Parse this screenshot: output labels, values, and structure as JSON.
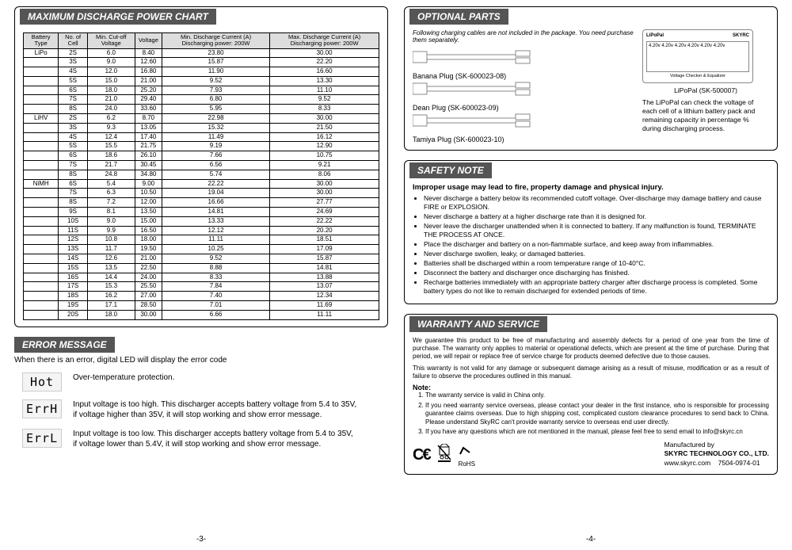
{
  "left": {
    "dischargeHeader": "MAXIMUM DISCHARGE POWER CHART",
    "tableHeaders": [
      "Battery Type",
      "No. of Cell",
      "Min. Cut-off Voltage",
      "Voltage",
      "Min. Discharge Current (A) Discharging power: 200W",
      "Max. Discharge Current (A) Discharging power: 200W"
    ],
    "rows": [
      [
        "LiPo",
        "2S",
        "6.0",
        "8.40",
        "23.80",
        "30.00"
      ],
      [
        "",
        "3S",
        "9.0",
        "12.60",
        "15.87",
        "22.20"
      ],
      [
        "",
        "4S",
        "12.0",
        "16.80",
        "11.90",
        "16.60"
      ],
      [
        "",
        "5S",
        "15.0",
        "21.00",
        "9.52",
        "13.30"
      ],
      [
        "",
        "6S",
        "18.0",
        "25.20",
        "7.93",
        "11.10"
      ],
      [
        "",
        "7S",
        "21.0",
        "29.40",
        "6.80",
        "9.52"
      ],
      [
        "",
        "8S",
        "24.0",
        "33.60",
        "5.95",
        "8.33"
      ],
      [
        "LiHV",
        "2S",
        "6.2",
        "8.70",
        "22.98",
        "30.00"
      ],
      [
        "",
        "3S",
        "9.3",
        "13.05",
        "15.32",
        "21.50"
      ],
      [
        "",
        "4S",
        "12.4",
        "17.40",
        "11.49",
        "16.12"
      ],
      [
        "",
        "5S",
        "15.5",
        "21.75",
        "9.19",
        "12.90"
      ],
      [
        "",
        "6S",
        "18.6",
        "26.10",
        "7.66",
        "10.75"
      ],
      [
        "",
        "7S",
        "21.7",
        "30.45",
        "6.56",
        "9.21"
      ],
      [
        "",
        "8S",
        "24.8",
        "34.80",
        "5.74",
        "8.06"
      ],
      [
        "NiMH",
        "6S",
        "5.4",
        "9.00",
        "22.22",
        "30.00"
      ],
      [
        "",
        "7S",
        "6.3",
        "10.50",
        "19.04",
        "30.00"
      ],
      [
        "",
        "8S",
        "7.2",
        "12.00",
        "16.66",
        "27.77"
      ],
      [
        "",
        "9S",
        "8.1",
        "13.50",
        "14.81",
        "24.69"
      ],
      [
        "",
        "10S",
        "9.0",
        "15.00",
        "13.33",
        "22.22"
      ],
      [
        "",
        "11S",
        "9.9",
        "16.50",
        "12.12",
        "20.20"
      ],
      [
        "",
        "12S",
        "10.8",
        "18.00",
        "11.11",
        "18.51"
      ],
      [
        "",
        "13S",
        "11.7",
        "19.50",
        "10.25",
        "17.09"
      ],
      [
        "",
        "14S",
        "12.6",
        "21.00",
        "9.52",
        "15.87"
      ],
      [
        "",
        "15S",
        "13.5",
        "22.50",
        "8.88",
        "14.81"
      ],
      [
        "",
        "16S",
        "14.4",
        "24.00",
        "8.33",
        "13.88"
      ],
      [
        "",
        "17S",
        "15.3",
        "25.50",
        "7.84",
        "13.07"
      ],
      [
        "",
        "18S",
        "16.2",
        "27.00",
        "7.40",
        "12.34"
      ],
      [
        "",
        "19S",
        "17.1",
        "28.50",
        "7.01",
        "11.69"
      ],
      [
        "",
        "20S",
        "18.0",
        "30.00",
        "6.66",
        "11.11"
      ]
    ],
    "errorHeader": "ERROR MESSAGE",
    "errorIntro": "When there is an error, digital LED will display the error code",
    "errors": [
      {
        "code": "Hot",
        "desc": "Over-temperature protection."
      },
      {
        "code": "ErrH",
        "desc": "Input voltage is too high. This discharger accepts battery voltage from 5.4 to 35V, if voltage higher than 35V, it will stop working and show error message."
      },
      {
        "code": "ErrL",
        "desc": "Input voltage is too low. This discharger accepts battery voltage from 5.4 to 35V, if voltage lower than 5.4V, it will stop working and show error message."
      }
    ],
    "pageNum": "-3-"
  },
  "right": {
    "optHeader": "OPTIONAL PARTS",
    "optIntro": "Following charging cables are not included in the package. You need purchase them separately.",
    "cables": [
      {
        "label": "Banana Plug (SK-600023-08)"
      },
      {
        "label": "Dean Plug (SK-600023-09)"
      },
      {
        "label": "Tamiya Plug (SK-600023-10)"
      }
    ],
    "lipopal": {
      "brand": "LiPoPal",
      "mfr": "SKYRC",
      "screen": "4.20v 4.20v 4.20v\n4.20v 4.20v 4.20v",
      "sub": "Voltage Checker & Equalizer",
      "label": "LiPoPal (SK-500007)",
      "desc": "The LiPoPal can check the voltage of each cell of a lithium battery pack and remaining capacity in percentage % during discharging process."
    },
    "safetyHeader": "SAFETY NOTE",
    "safetyBold": "Improper usage may lead to fire, property damage and physical injury.",
    "safetyItems": [
      "Never discharge a battery below its recommended cutoff voltage. Over-discharge may damage battery and cause FIRE or EXPLOSION.",
      "Never discharge a battery at a higher discharge rate than it is designed for.",
      "Never leave the discharger unattended when it is connected to battery. If any malfunction is found, TERMINATE THE PROCESS AT ONCE.",
      "Place the discharger and battery on a non-flammable surface, and keep away from inflammables.",
      "Never discharge swollen, leaky, or damaged batteries.",
      "Batteries shall be discharged within a room temperature range of 10-40°C.",
      "Disconnect the battery and discharger once discharging has finished.",
      "Recharge batteries immediately with an appropriate battery charger after discharge process is completed. Some battery types do not like to remain discharged for extended periods of time."
    ],
    "warrantyHeader": "WARRANTY AND SERVICE",
    "warrantyP1": "We guarantee this product to be free of manufacturing and assembly defects for a period of one year from the time of purchase. The warranty only applies to material or operational defects, which are present at the time of purchase. During that period, we will repair or replace free of service charge for products deemed defective due to those causes.",
    "warrantyP2": "This warranty is not valid for any damage or subsequent damage arising as a result of misuse, modification or as a result of failure to observe the procedures outlined in this manual.",
    "noteLabel": "Note:",
    "notes": [
      "The warranty service is valid in China only.",
      "If you need warranty service overseas, please contact your dealer in the first instance, who is responsible for processing guarantee claims overseas. Due to high shipping cost, complicated custom clearance procedures to send back to China. Please understand SkyRC can't provide warranty service to overseas end user directly.",
      "If you have any questions which are not mentioned in the manual, please feel free to send email to info@skyrc.cn"
    ],
    "mfrBy": "Manufactured by",
    "mfrCo": "SKYRC TECHNOLOGY CO., LTD.",
    "mfrWeb": "www.skyrc.com",
    "mfrCode": "7504-0974-01",
    "pageNum": "-4-"
  }
}
